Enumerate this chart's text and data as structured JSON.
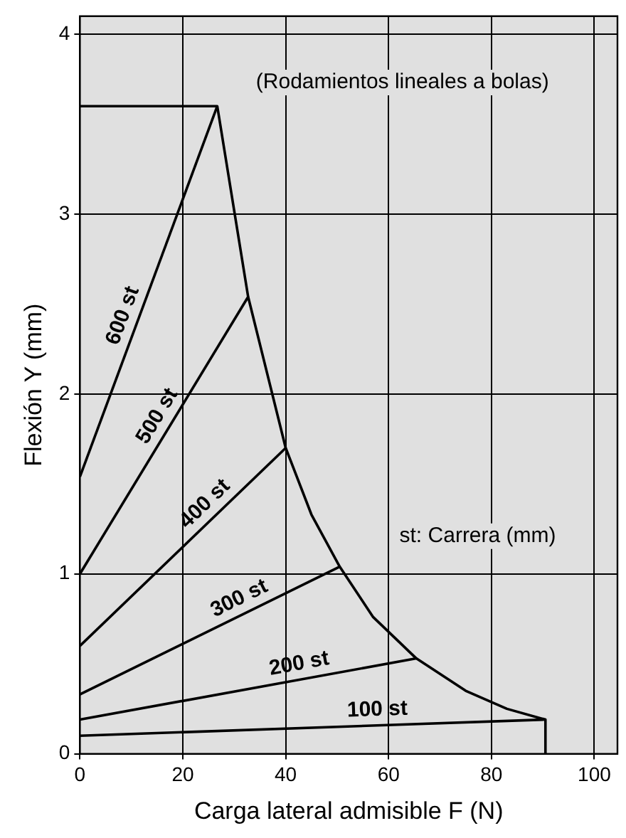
{
  "chart_data": {
    "type": "line",
    "xlabel": "Carga lateral admisible F (N)",
    "ylabel": "Flexión Y (mm)",
    "annotations": [
      "(Rodamientos lineales a bolas)",
      "st: Carrera (mm)"
    ],
    "xlim": [
      0,
      104.5
    ],
    "xticks": [
      0,
      20,
      40,
      60,
      80,
      100
    ],
    "ylim": [
      0,
      4.1
    ],
    "yticks": [
      0,
      1,
      2,
      3,
      4
    ],
    "grid": true,
    "legend": false,
    "marker": "none",
    "line_style": "solid",
    "series": [
      {
        "name": "600 st",
        "color": "#000000",
        "x": [
          0,
          26.7
        ],
        "values": [
          1.54,
          3.6
        ]
      },
      {
        "name": "500 st",
        "color": "#000000",
        "x": [
          0,
          32.7
        ],
        "values": [
          1.0,
          2.54
        ]
      },
      {
        "name": "400 st",
        "color": "#000000",
        "x": [
          0,
          40
        ],
        "values": [
          0.6,
          1.7
        ]
      },
      {
        "name": "300 st",
        "color": "#000000",
        "x": [
          0,
          50.5
        ],
        "values": [
          0.33,
          1.04
        ]
      },
      {
        "name": "200 st",
        "color": "#000000",
        "x": [
          0,
          65.4
        ],
        "values": [
          0.19,
          0.53
        ]
      },
      {
        "name": "100 st",
        "color": "#000000",
        "x": [
          0,
          90.5
        ],
        "values": [
          0.1,
          0.19
        ]
      },
      {
        "color": "#000000",
        "x": [
          0,
          26.7,
          32.7,
          40,
          45,
          50.5,
          57,
          65.4,
          75,
          83,
          90.5,
          90.5
        ],
        "values": [
          3.6,
          3.6,
          2.54,
          1.7,
          1.33,
          1.04,
          0.76,
          0.53,
          0.35,
          0.25,
          0.19,
          0
        ]
      }
    ]
  }
}
